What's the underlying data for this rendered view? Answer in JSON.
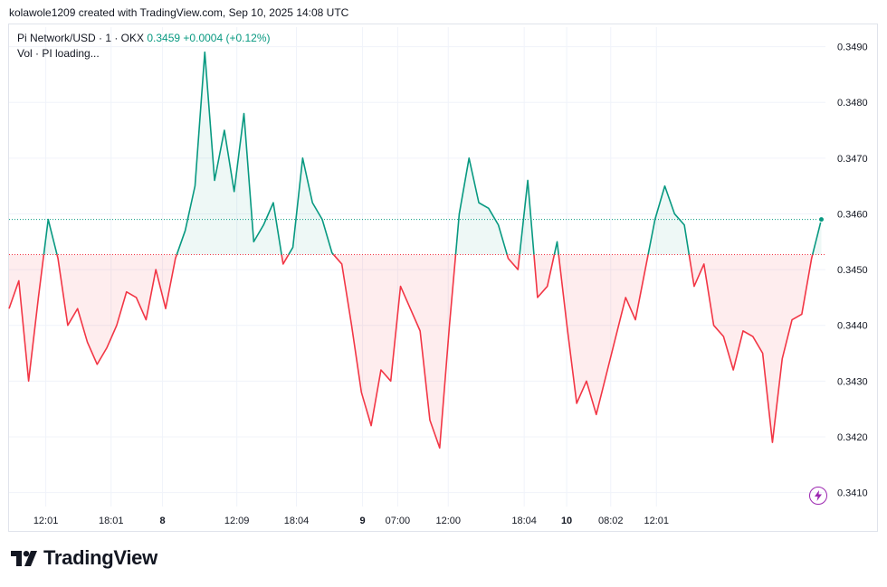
{
  "caption": "kolawole1209 created with TradingView.com, Sep 10, 2025 14:08 UTC",
  "legend": {
    "symbol": "Pi Network/USD · 1 · OKX",
    "price": "0.3459",
    "change": "+0.0004 (+0.12%)",
    "volume": "Vol · PI loading..."
  },
  "brand": "TradingView",
  "colors": {
    "up": "#089981",
    "down": "#f23645",
    "accent": "#9c27b0"
  },
  "chart_data": {
    "type": "line",
    "baseline": 0.34527,
    "last_price": 0.3459,
    "ylim": [
      0.34075,
      0.34935
    ],
    "yticks": [
      "0.3490",
      "0.3480",
      "0.3470",
      "0.3460",
      "0.3450",
      "0.3440",
      "0.3430",
      "0.3420",
      "0.3410"
    ],
    "xticks": [
      {
        "label": "12:01",
        "pos": 0.045,
        "bold": false
      },
      {
        "label": "18:01",
        "pos": 0.125,
        "bold": false
      },
      {
        "label": "8",
        "pos": 0.188,
        "bold": true
      },
      {
        "label": "12:09",
        "pos": 0.279,
        "bold": false
      },
      {
        "label": "18:04",
        "pos": 0.352,
        "bold": false
      },
      {
        "label": "9",
        "pos": 0.433,
        "bold": true
      },
      {
        "label": "07:00",
        "pos": 0.476,
        "bold": false
      },
      {
        "label": "12:00",
        "pos": 0.538,
        "bold": false
      },
      {
        "label": "18:04",
        "pos": 0.631,
        "bold": false
      },
      {
        "label": "10",
        "pos": 0.683,
        "bold": true
      },
      {
        "label": "08:02",
        "pos": 0.737,
        "bold": false
      },
      {
        "label": "12:01",
        "pos": 0.793,
        "bold": false
      }
    ],
    "series": [
      {
        "x": [
          0,
          0.01,
          0.02,
          0.03,
          0.04,
          0.05,
          0.06,
          0.07,
          0.08,
          0.09,
          0.1,
          0.11,
          0.12,
          0.13,
          0.14,
          0.15,
          0.16,
          0.17,
          0.18,
          0.19,
          0.2,
          0.21,
          0.22,
          0.23,
          0.24,
          0.25,
          0.26,
          0.27,
          0.28,
          0.29,
          0.3,
          0.31,
          0.32,
          0.33,
          0.34,
          0.35,
          0.36,
          0.37,
          0.38,
          0.39,
          0.4,
          0.41,
          0.42,
          0.43,
          0.44,
          0.45,
          0.46,
          0.47,
          0.48,
          0.49,
          0.5,
          0.51,
          0.52,
          0.53,
          0.54,
          0.55,
          0.56,
          0.57,
          0.58,
          0.59,
          0.6,
          0.61,
          0.62,
          0.63,
          0.64,
          0.65,
          0.66,
          0.67,
          0.68,
          0.69,
          0.7,
          0.71,
          0.72,
          0.73,
          0.74,
          0.75,
          0.76,
          0.77,
          0.78,
          0.79,
          0.8,
          0.81,
          0.82,
          0.83
        ],
        "values": [
          0.3443,
          0.3448,
          0.343,
          0.3445,
          0.3459,
          0.3452,
          0.344,
          0.3443,
          0.3437,
          0.3433,
          0.3436,
          0.344,
          0.3446,
          0.3445,
          0.3441,
          0.345,
          0.3443,
          0.3452,
          0.3457,
          0.3465,
          0.3489,
          0.3466,
          0.3475,
          0.3464,
          0.3478,
          0.3455,
          0.3458,
          0.3462,
          0.3451,
          0.3454,
          0.347,
          0.3462,
          0.3459,
          0.3453,
          0.3451,
          0.344,
          0.3428,
          0.3422,
          0.3432,
          0.343,
          0.3447,
          0.3443,
          0.3439,
          0.3423,
          0.3418,
          0.344,
          0.346,
          0.347,
          0.3462,
          0.3461,
          0.3458,
          0.3452,
          0.345,
          0.3466,
          0.3445,
          0.3447,
          0.3455,
          0.344,
          0.3426,
          0.343,
          0.3424,
          0.3431,
          0.3438,
          0.3445,
          0.3441,
          0.345,
          0.3459,
          0.3465,
          0.346,
          0.3458,
          0.3447,
          0.3451,
          0.344,
          0.3438,
          0.3432,
          0.3439,
          0.3438,
          0.3435,
          0.3419,
          0.3434,
          0.3441,
          0.3442,
          0.3452,
          0.3459
        ]
      }
    ]
  }
}
